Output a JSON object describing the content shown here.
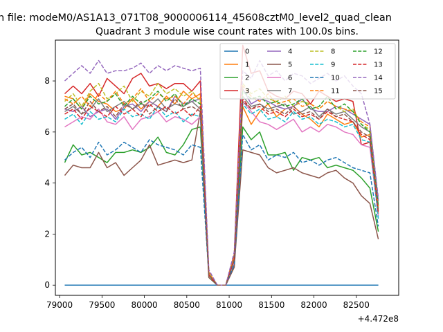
{
  "figure": {
    "suptitle": "n file: modeM0/AS1A13_071T08_9000006114_45608cztM0_level2_quad_clean",
    "x_offset_label": "+4.472e8"
  },
  "chart_data": {
    "type": "line",
    "title": "Quadrant 3 module wise count rates with 100.0s bins.",
    "xlabel": "",
    "ylabel": "",
    "xlim": [
      78950,
      83000
    ],
    "ylim": [
      -0.4,
      9.6
    ],
    "x_ticks": [
      79000,
      79500,
      80000,
      80500,
      81000,
      81500,
      82000,
      82500
    ],
    "y_ticks": [
      0,
      2,
      4,
      6,
      8
    ],
    "grid": false,
    "legend_position": "top-right",
    "legend_columns": 4,
    "x": [
      79060,
      79160,
      79260,
      79360,
      79460,
      79560,
      79660,
      79760,
      79860,
      79960,
      80060,
      80160,
      80260,
      80360,
      80460,
      80560,
      80660,
      80760,
      80860,
      80960,
      81060,
      81160,
      81260,
      81360,
      81460,
      81560,
      81660,
      81760,
      81860,
      81960,
      82060,
      82160,
      82260,
      82360,
      82460,
      82560,
      82660,
      82760
    ],
    "series": [
      {
        "name": "0",
        "color": "#1f77b4",
        "dash": "solid",
        "values": [
          0,
          0,
          0,
          0,
          0,
          0,
          0,
          0,
          0,
          0,
          0,
          0,
          0,
          0,
          0,
          0,
          0,
          0,
          0,
          0,
          0,
          0,
          0,
          0,
          0,
          0,
          0,
          0,
          0,
          0,
          0,
          0,
          0,
          0,
          0,
          0,
          0,
          0
        ]
      },
      {
        "name": "1",
        "color": "#ff7f0e",
        "dash": "solid",
        "values": [
          7.4,
          7.3,
          6.9,
          7.5,
          7.2,
          7.1,
          6.8,
          6.9,
          7.3,
          6.9,
          7.2,
          7.0,
          7.4,
          7.1,
          7.6,
          7.3,
          7.5,
          0.4,
          0,
          0,
          1.0,
          7.0,
          6.3,
          6.8,
          7.1,
          6.6,
          6.9,
          7.0,
          6.7,
          6.5,
          6.2,
          6.7,
          6.5,
          6.3,
          6.4,
          5.8,
          5.9,
          2.8
        ]
      },
      {
        "name": "2",
        "color": "#2ca02c",
        "dash": "solid",
        "values": [
          4.8,
          5.5,
          5.1,
          5.2,
          5.0,
          4.8,
          5.2,
          5.2,
          5.3,
          5.2,
          5.4,
          5.8,
          5.2,
          5.1,
          5.5,
          6.1,
          6.2,
          0.3,
          0,
          0,
          0.8,
          6.2,
          5.7,
          6.0,
          5.1,
          5.1,
          5.2,
          4.5,
          5.0,
          4.9,
          5.0,
          4.6,
          4.7,
          4.6,
          4.5,
          4.2,
          3.8,
          2.1
        ]
      },
      {
        "name": "3",
        "color": "#d62728",
        "dash": "solid",
        "values": [
          7.5,
          7.8,
          7.5,
          7.9,
          7.4,
          8.1,
          7.8,
          7.5,
          8.1,
          8.3,
          7.8,
          7.9,
          7.7,
          7.9,
          7.9,
          7.6,
          8.0,
          0.5,
          0,
          0,
          1.2,
          9.4,
          8.3,
          8.4,
          7.6,
          7.4,
          7.3,
          7.6,
          7.5,
          7.1,
          7.6,
          7.4,
          7.2,
          7.3,
          7.2,
          5.5,
          5.6,
          3.1
        ]
      },
      {
        "name": "4",
        "color": "#9467bd",
        "dash": "solid",
        "values": [
          6.9,
          6.8,
          7.0,
          6.6,
          6.8,
          6.9,
          6.5,
          7.0,
          7.1,
          6.8,
          7.2,
          7.0,
          6.8,
          7.4,
          7.1,
          7.2,
          7.3,
          0.5,
          0,
          0,
          1.1,
          7.7,
          7.1,
          7.3,
          7.2,
          7.0,
          6.9,
          7.0,
          7.3,
          6.9,
          6.8,
          6.8,
          7.0,
          6.9,
          6.7,
          6.5,
          6.3,
          3.3
        ]
      },
      {
        "name": "5",
        "color": "#8c564b",
        "dash": "solid",
        "values": [
          4.3,
          4.7,
          4.6,
          4.6,
          5.2,
          4.6,
          4.8,
          4.3,
          4.6,
          4.9,
          5.5,
          4.7,
          4.8,
          4.9,
          4.8,
          4.9,
          6.8,
          0.3,
          0,
          0,
          0.7,
          5.3,
          5.2,
          5.1,
          4.6,
          4.4,
          4.5,
          4.6,
          4.4,
          4.3,
          4.2,
          4.4,
          4.5,
          4.2,
          4.0,
          3.5,
          3.2,
          1.8
        ]
      },
      {
        "name": "6",
        "color": "#e377c2",
        "dash": "solid",
        "values": [
          6.2,
          6.4,
          6.6,
          6.5,
          6.9,
          6.4,
          6.3,
          6.6,
          6.1,
          6.5,
          6.6,
          6.8,
          6.4,
          6.6,
          6.5,
          6.3,
          6.6,
          0.4,
          0,
          0,
          0.9,
          7.2,
          6.8,
          6.4,
          6.3,
          6.1,
          6.3,
          6.5,
          6.0,
          6.2,
          6.0,
          6.3,
          6.2,
          6.0,
          5.9,
          5.5,
          5.4,
          2.7
        ]
      },
      {
        "name": "7",
        "color": "#7f7f7f",
        "dash": "solid",
        "values": [
          6.8,
          7.0,
          6.7,
          6.9,
          7.3,
          6.8,
          7.0,
          7.2,
          6.9,
          7.1,
          7.0,
          7.3,
          6.9,
          7.1,
          7.0,
          7.2,
          6.9,
          0.4,
          0,
          0,
          1.0,
          7.4,
          7.0,
          7.1,
          6.9,
          7.0,
          7.1,
          6.7,
          6.8,
          7.0,
          6.6,
          6.9,
          6.7,
          6.8,
          6.5,
          6.2,
          6.0,
          2.9
        ]
      },
      {
        "name": "8",
        "color": "#bcbd22",
        "dash": "dashed",
        "values": [
          7.2,
          7.5,
          7.0,
          7.6,
          7.9,
          7.3,
          7.5,
          7.8,
          7.2,
          7.6,
          7.4,
          7.9,
          7.5,
          7.7,
          7.4,
          7.6,
          7.2,
          0.5,
          0,
          0,
          1.1,
          7.9,
          7.5,
          7.7,
          7.3,
          7.2,
          7.4,
          7.0,
          7.2,
          7.1,
          6.9,
          7.2,
          7.0,
          6.8,
          6.9,
          6.3,
          6.1,
          3.0
        ]
      },
      {
        "name": "9",
        "color": "#17becf",
        "dash": "dashed",
        "values": [
          6.5,
          6.7,
          6.3,
          6.8,
          6.5,
          6.6,
          6.4,
          6.9,
          6.6,
          6.7,
          6.5,
          7.0,
          6.6,
          6.8,
          6.4,
          6.7,
          6.6,
          0.4,
          0,
          0,
          1.0,
          7.1,
          6.7,
          6.9,
          6.5,
          6.6,
          6.4,
          6.8,
          6.5,
          6.6,
          6.3,
          6.5,
          6.4,
          6.2,
          6.3,
          5.7,
          5.6,
          2.6
        ]
      },
      {
        "name": "10",
        "color": "#1f77b4",
        "dash": "dashed",
        "values": [
          4.9,
          5.2,
          5.4,
          5.0,
          5.6,
          5.1,
          5.3,
          5.6,
          5.4,
          5.2,
          5.7,
          5.5,
          5.4,
          5.3,
          5.1,
          5.5,
          5.4,
          0.4,
          0,
          0,
          0.8,
          5.9,
          5.3,
          5.5,
          4.9,
          5.1,
          5.0,
          5.2,
          4.8,
          4.9,
          4.7,
          4.9,
          5.0,
          4.8,
          4.6,
          4.5,
          4.4,
          2.3
        ]
      },
      {
        "name": "11",
        "color": "#ff7f0e",
        "dash": "dashed",
        "values": [
          7.3,
          7.1,
          7.4,
          7.0,
          7.5,
          7.2,
          7.6,
          7.1,
          7.3,
          7.7,
          7.2,
          7.5,
          7.3,
          7.4,
          7.1,
          7.5,
          7.3,
          0.5,
          0,
          0,
          1.1,
          7.8,
          7.4,
          7.2,
          7.5,
          7.1,
          7.2,
          7.3,
          7.0,
          7.1,
          6.9,
          7.2,
          7.0,
          6.9,
          6.8,
          6.4,
          6.2,
          3.0
        ]
      },
      {
        "name": "12",
        "color": "#2ca02c",
        "dash": "dashed",
        "values": [
          7.0,
          7.3,
          6.9,
          7.4,
          7.1,
          7.2,
          7.5,
          7.0,
          7.4,
          7.1,
          7.3,
          7.6,
          7.2,
          7.5,
          7.0,
          7.3,
          7.1,
          0.4,
          0,
          0,
          1.0,
          7.6,
          7.3,
          7.4,
          7.1,
          7.2,
          7.0,
          7.1,
          7.3,
          6.9,
          7.0,
          7.4,
          6.9,
          7.1,
          6.8,
          6.3,
          6.0,
          3.1
        ]
      },
      {
        "name": "13",
        "color": "#d62728",
        "dash": "dashed",
        "values": [
          6.7,
          6.9,
          6.5,
          7.0,
          6.8,
          6.6,
          7.0,
          6.7,
          6.9,
          6.6,
          7.1,
          6.8,
          7.0,
          6.7,
          6.9,
          6.6,
          7.0,
          0.4,
          0,
          0,
          1.0,
          7.3,
          6.9,
          7.0,
          6.7,
          6.8,
          6.6,
          6.9,
          6.6,
          6.7,
          6.5,
          6.8,
          6.6,
          6.5,
          6.4,
          5.9,
          5.7,
          2.8
        ]
      },
      {
        "name": "14",
        "color": "#9467bd",
        "dash": "dashed",
        "values": [
          8.0,
          8.3,
          8.6,
          8.3,
          8.8,
          8.3,
          8.4,
          8.4,
          8.5,
          8.7,
          8.3,
          8.6,
          8.4,
          8.6,
          8.5,
          8.4,
          8.5,
          0.6,
          0,
          0,
          1.3,
          8.4,
          8.1,
          8.8,
          8.2,
          8.4,
          8.0,
          8.3,
          8.2,
          7.9,
          8.1,
          8.3,
          8.0,
          8.2,
          7.8,
          7.5,
          6.3,
          3.4
        ]
      },
      {
        "name": "15",
        "color": "#8c564b",
        "dash": "dashed",
        "values": [
          6.9,
          7.1,
          6.7,
          7.2,
          6.8,
          7.0,
          6.6,
          7.1,
          6.9,
          7.2,
          6.7,
          7.0,
          6.8,
          7.3,
          6.9,
          7.0,
          6.8,
          0.4,
          0,
          0,
          1.0,
          7.2,
          6.9,
          7.1,
          6.8,
          6.9,
          6.7,
          7.0,
          6.7,
          6.8,
          6.5,
          6.9,
          6.6,
          6.7,
          6.4,
          6.0,
          5.8,
          2.9
        ]
      }
    ]
  }
}
